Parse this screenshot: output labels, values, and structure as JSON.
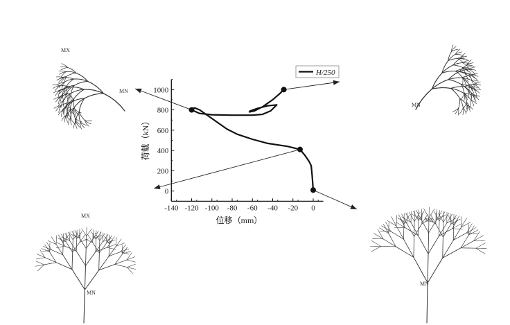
{
  "chart_data": {
    "type": "line",
    "title": "",
    "xlabel": "位移（mm）",
    "ylabel": "荷载（kN）",
    "xlim": [
      -140,
      10
    ],
    "ylim": [
      -100,
      1100
    ],
    "xticks": [
      -140,
      -120,
      -100,
      -80,
      -60,
      -40,
      -20,
      0
    ],
    "yticks": [
      0,
      200,
      400,
      600,
      800,
      1000
    ],
    "grid": false,
    "legend": {
      "position": "top-right",
      "entries": [
        "H/250"
      ]
    },
    "series": [
      {
        "name": "H/250",
        "color": "#111111",
        "points": [
          [
            0,
            10
          ],
          [
            -1,
            150
          ],
          [
            -2,
            250
          ],
          [
            -4,
            290
          ],
          [
            -8,
            350
          ],
          [
            -13,
            410
          ],
          [
            -25,
            440
          ],
          [
            -45,
            470
          ],
          [
            -60,
            510
          ],
          [
            -75,
            560
          ],
          [
            -85,
            610
          ],
          [
            -95,
            680
          ],
          [
            -105,
            750
          ],
          [
            -112,
            800
          ],
          [
            -117,
            820
          ],
          [
            -119,
            815
          ],
          [
            -120,
            800
          ],
          [
            -112,
            765
          ],
          [
            -100,
            752
          ],
          [
            -80,
            748
          ],
          [
            -60,
            748
          ],
          [
            -50,
            756
          ],
          [
            -42,
            790
          ],
          [
            -36,
            850
          ],
          [
            -45,
            840
          ],
          [
            -55,
            815
          ],
          [
            -62,
            790
          ],
          [
            -63,
            780
          ],
          [
            -58,
            790
          ],
          [
            -50,
            830
          ],
          [
            -40,
            900
          ],
          [
            -33,
            960
          ],
          [
            -29,
            1000
          ]
        ],
        "markers": [
          [
            0,
            10
          ],
          [
            -13,
            410
          ],
          [
            -120,
            800
          ],
          [
            -29,
            1000
          ]
        ]
      }
    ]
  },
  "figures": {
    "top_left": {
      "labels": [
        "MN",
        "MX"
      ]
    },
    "top_right": {
      "labels": [
        "MN"
      ]
    },
    "bottom_left": {
      "labels": [
        "MX",
        "MN"
      ]
    },
    "bottom_right": {
      "labels": [
        "MX",
        "MN"
      ]
    }
  }
}
